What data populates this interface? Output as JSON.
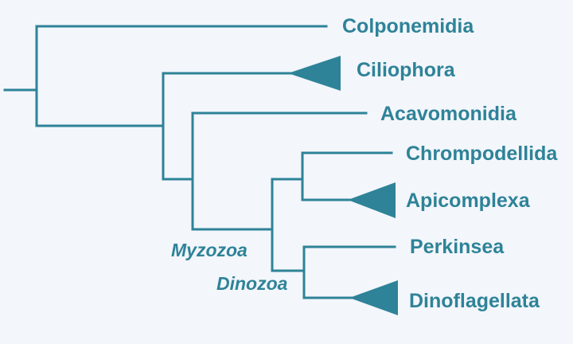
{
  "colors": {
    "branch": "#2e8398",
    "label": "#2e8398",
    "background": "#f3f6fb"
  },
  "taxa": {
    "colponemidia": "Colponemidia",
    "ciliophora": "Ciliophora",
    "acavomonidia": "Acavomonidia",
    "chrompodellida": "Chrompodellida",
    "apicomplexa": "Apicomplexa",
    "perkinsea": "Perkinsea",
    "dinoflagellata": "Dinoflagellata"
  },
  "node_labels": {
    "myzozoa": "Myzozoa",
    "dinozoa": "Dinozoa"
  },
  "collapsed_clades": [
    "Ciliophora",
    "Apicomplexa",
    "Dinoflagellata"
  ]
}
